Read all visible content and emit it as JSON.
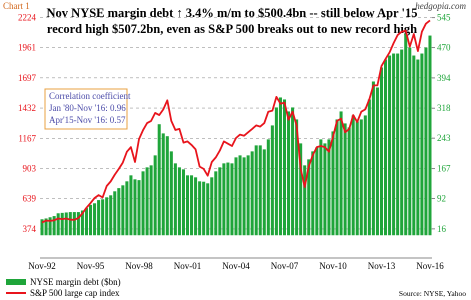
{
  "chart_data": {
    "type": "bar-line",
    "label": "Chart 1",
    "watermark": "hedgopia.com",
    "title": [
      "Nov NYSE margin debt ↑ 3.4% m/m to $500.4bn -- still below Apr '15",
      "record  high $507.2bn, even as S&P 500 breaks out to new record high"
    ],
    "annotation": [
      "Correlation coefficient",
      "Jan '80-Nov '16: 0.96",
      "Apr'15-Nov '16: 0.57"
    ],
    "source": "Source: NYSE, Yahoo",
    "categories": [
      "Nov-92",
      null,
      null,
      null,
      null,
      null,
      null,
      null,
      null,
      null,
      null,
      null,
      "Nov-95",
      null,
      null,
      null,
      null,
      null,
      null,
      null,
      null,
      null,
      null,
      null,
      "Nov-98",
      null,
      null,
      null,
      null,
      null,
      null,
      null,
      null,
      null,
      null,
      null,
      "Nov-01",
      null,
      null,
      null,
      null,
      null,
      null,
      null,
      null,
      null,
      null,
      null,
      "Nov-04",
      null,
      null,
      null,
      null,
      null,
      null,
      null,
      null,
      null,
      null,
      null,
      "Nov-07",
      null,
      null,
      null,
      null,
      null,
      null,
      null,
      null,
      null,
      null,
      null,
      "Nov-10",
      null,
      null,
      null,
      null,
      null,
      null,
      null,
      null,
      null,
      null,
      null,
      "Nov-13",
      null,
      null,
      null,
      null,
      null,
      null,
      null,
      null,
      null,
      null,
      null,
      "Nov-16"
    ],
    "series": [
      {
        "name": "NYSE margin debt ($bn)",
        "type": "bar",
        "axis": "y2",
        "color": "#1fa53a",
        "values": [
          40,
          42,
          45,
          48,
          55,
          56,
          57,
          58,
          58,
          58,
          62,
          68,
          76,
          80,
          88,
          90,
          95,
          100,
          110,
          118,
          125,
          135,
          150,
          140,
          138,
          160,
          170,
          175,
          200,
          278,
          255,
          248,
          210,
          180,
          170,
          165,
          150,
          150,
          145,
          135,
          134,
          130,
          145,
          160,
          170,
          180,
          182,
          180,
          195,
          200,
          195,
          200,
          210,
          225,
          225,
          215,
          240,
          275,
          320,
          345,
          340,
          310,
          320,
          290,
          230,
          175,
          190,
          210,
          220,
          240,
          230,
          240,
          260,
          290,
          310,
          280,
          270,
          300,
          285,
          290,
          300,
          340,
          385,
          370,
          420,
          440,
          450,
          455,
          455,
          465,
          505,
          470,
          450,
          440,
          455,
          470,
          500
        ]
      },
      {
        "name": "S&P 500 large cap index",
        "type": "line",
        "color": "#e8141c",
        "values": [
          431,
          447,
          445,
          450,
          466,
          460,
          466,
          455,
          454,
          470,
          510,
          560,
          600,
          645,
          670,
          650,
          750,
          790,
          850,
          900,
          955,
          1050,
          1090,
          960,
          1160,
          1240,
          1300,
          1320,
          1390,
          1370,
          1420,
          1500,
          1320,
          1240,
          1250,
          1130,
          1140,
          1110,
          1070,
          920,
          900,
          840,
          960,
          1000,
          1060,
          1140,
          1120,
          1100,
          1170,
          1200,
          1190,
          1220,
          1250,
          1280,
          1270,
          1300,
          1400,
          1410,
          1530,
          1470,
          1480,
          1330,
          1400,
          1280,
          900,
          740,
          920,
          1020,
          1090,
          1100,
          1090,
          1050,
          1180,
          1320,
          1340,
          1220,
          1250,
          1370,
          1310,
          1400,
          1420,
          1510,
          1630,
          1630,
          1800,
          1860,
          1920,
          2000,
          2070,
          2100,
          2110,
          1970,
          2080,
          1930,
          2100,
          2170,
          2199
        ]
      }
    ],
    "ylim": [
      120,
      2290
    ],
    "yticks": [
      374,
      639,
      903,
      1167,
      1432,
      1697,
      1961,
      2224
    ],
    "y2lim": [
      -57,
      564
    ],
    "y2ticks": [
      16,
      92,
      167,
      243,
      318,
      394,
      470,
      545
    ],
    "grid": true
  }
}
